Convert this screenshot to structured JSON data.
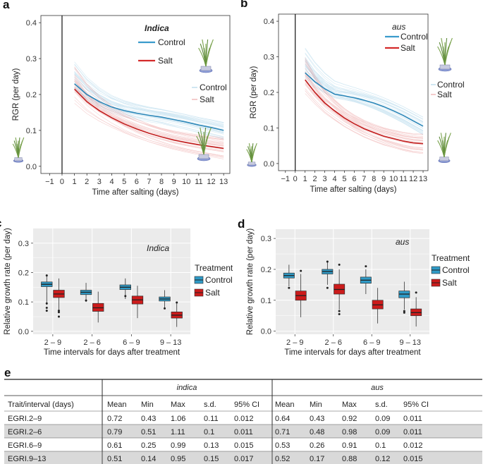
{
  "colors": {
    "control": "#3a9bcc",
    "salt": "#d42a2a",
    "control_box": "#2f9ac6",
    "salt_box": "#cc1b1b",
    "panel_bg": "#ebebeb",
    "grid": "#ffffff",
    "row_shade": "#d9d9d9"
  },
  "chart_data": [
    {
      "id": "a",
      "type": "line",
      "panel_letter": "a",
      "xlabel": "Time after salting (days)",
      "ylabel": "RGR (per day)",
      "x_ticks": [
        "−1",
        "0",
        "1",
        "2",
        "3",
        "4",
        "5",
        "6",
        "7",
        "8",
        "9",
        "10",
        "11",
        "12",
        "13"
      ],
      "xlim": [
        -1.7,
        13.5
      ],
      "y_ticks": [
        "0.0",
        "0.1",
        "0.2",
        "0.3",
        "0.4"
      ],
      "ylim": [
        -0.02,
        0.42
      ],
      "vline_x": 0,
      "legend_title": "Indica",
      "legend_entries": [
        "Control",
        "Salt"
      ],
      "legend_entries_small": [
        "Control",
        "Salt"
      ],
      "series": [
        {
          "name": "Control",
          "x": [
            1,
            2,
            3,
            4,
            5,
            6,
            7,
            8,
            9,
            10,
            11,
            12,
            13
          ],
          "values": [
            0.23,
            0.2,
            0.18,
            0.165,
            0.155,
            0.148,
            0.142,
            0.137,
            0.13,
            0.123,
            0.115,
            0.108,
            0.1
          ]
        },
        {
          "name": "Salt",
          "x": [
            1,
            2,
            3,
            4,
            5,
            6,
            7,
            8,
            9,
            10,
            11,
            12,
            13
          ],
          "values": [
            0.215,
            0.18,
            0.155,
            0.135,
            0.118,
            0.104,
            0.092,
            0.082,
            0.073,
            0.066,
            0.06,
            0.055,
            0.05
          ]
        }
      ]
    },
    {
      "id": "b",
      "type": "line",
      "panel_letter": "b",
      "xlabel": "Time after salting (days)",
      "ylabel": "RGR (per day)",
      "x_ticks": [
        "−1",
        "0",
        "1",
        "2",
        "3",
        "4",
        "5",
        "6",
        "7",
        "8",
        "9",
        "10",
        "11",
        "12",
        "13"
      ],
      "xlim": [
        -1.7,
        13.5
      ],
      "y_ticks": [
        "0.0",
        "0.1",
        "0.2",
        "0.3",
        "0.4"
      ],
      "ylim": [
        -0.02,
        0.42
      ],
      "vline_x": 0,
      "legend_title": "aus",
      "legend_entries": [
        "Control",
        "Salt"
      ],
      "legend_entries_small": [
        "Control",
        "Salt"
      ],
      "series": [
        {
          "name": "Control",
          "x": [
            1,
            2,
            3,
            4,
            5,
            6,
            7,
            8,
            9,
            10,
            11,
            12,
            13
          ],
          "values": [
            0.255,
            0.23,
            0.21,
            0.195,
            0.19,
            0.185,
            0.178,
            0.17,
            0.16,
            0.148,
            0.135,
            0.12,
            0.105
          ]
        },
        {
          "name": "Salt",
          "x": [
            1,
            2,
            3,
            4,
            5,
            6,
            7,
            8,
            9,
            10,
            11,
            12,
            13
          ],
          "values": [
            0.235,
            0.2,
            0.17,
            0.148,
            0.128,
            0.112,
            0.098,
            0.087,
            0.077,
            0.07,
            0.063,
            0.058,
            0.056
          ]
        }
      ]
    },
    {
      "id": "c",
      "type": "box",
      "panel_letter": "c",
      "xlabel": "Time intervals for days after treatment",
      "ylabel": "Relative growth rate (per day)",
      "categories": [
        "2 – 9",
        "2 – 6",
        "6 – 9",
        "9 – 13"
      ],
      "y_ticks": [
        "0.0",
        "0.1",
        "0.2",
        "0.3"
      ],
      "ylim": [
        -0.01,
        0.35
      ],
      "annotation": "Indica",
      "legend_title": "Treatment",
      "legend_entries": [
        "Control",
        "Salt"
      ],
      "series": [
        {
          "name": "Control",
          "boxes": [
            {
              "min": 0.09,
              "q1": 0.152,
              "median": 0.16,
              "q3": 0.168,
              "max": 0.19,
              "outliers": [
                0.07,
                0.08,
                0.095,
                0.19
              ]
            },
            {
              "min": 0.1,
              "q1": 0.125,
              "median": 0.133,
              "q3": 0.14,
              "max": 0.165,
              "outliers": [
                0.105
              ]
            },
            {
              "min": 0.11,
              "q1": 0.142,
              "median": 0.15,
              "q3": 0.158,
              "max": 0.18,
              "outliers": [
                0.12
              ]
            },
            {
              "min": 0.08,
              "q1": 0.103,
              "median": 0.11,
              "q3": 0.117,
              "max": 0.14,
              "outliers": [
                0.078
              ]
            }
          ]
        },
        {
          "name": "Salt",
          "boxes": [
            {
              "min": 0.07,
              "q1": 0.115,
              "median": 0.127,
              "q3": 0.14,
              "max": 0.18,
              "outliers": [
                0.05,
                0.065,
                0.07
              ]
            },
            {
              "min": 0.03,
              "q1": 0.068,
              "median": 0.08,
              "q3": 0.095,
              "max": 0.135,
              "outliers": []
            },
            {
              "min": 0.045,
              "q1": 0.093,
              "median": 0.107,
              "q3": 0.12,
              "max": 0.155,
              "outliers": []
            },
            {
              "min": 0.015,
              "q1": 0.045,
              "median": 0.055,
              "q3": 0.066,
              "max": 0.095,
              "outliers": [
                0.098
              ]
            }
          ]
        }
      ]
    },
    {
      "id": "d",
      "type": "box",
      "panel_letter": "d",
      "xlabel": "Time intervals for days after treatment",
      "ylabel": "Relative growth rate (per day)",
      "categories": [
        "2 – 9",
        "2 – 6",
        "6 – 9",
        "9 – 13"
      ],
      "y_ticks": [
        "0.0",
        "0.1",
        "0.2",
        "0.3"
      ],
      "ylim": [
        -0.01,
        0.33
      ],
      "annotation": "aus",
      "legend_title": "Treatment",
      "legend_entries": [
        "Control",
        "Salt"
      ],
      "series": [
        {
          "name": "Control",
          "boxes": [
            {
              "min": 0.145,
              "q1": 0.172,
              "median": 0.18,
              "q3": 0.188,
              "max": 0.215,
              "outliers": [
                0.14
              ]
            },
            {
              "min": 0.15,
              "q1": 0.185,
              "median": 0.193,
              "q3": 0.2,
              "max": 0.225,
              "outliers": [
                0.14,
                0.225
              ]
            },
            {
              "min": 0.12,
              "q1": 0.155,
              "median": 0.165,
              "q3": 0.175,
              "max": 0.2,
              "outliers": [
                0.21
              ]
            },
            {
              "min": 0.07,
              "q1": 0.108,
              "median": 0.12,
              "q3": 0.13,
              "max": 0.16,
              "outliers": [
                0.06,
                0.065
              ]
            }
          ]
        },
        {
          "name": "Salt",
          "boxes": [
            {
              "min": 0.045,
              "q1": 0.1,
              "median": 0.115,
              "q3": 0.13,
              "max": 0.185,
              "outliers": [
                0.195
              ]
            },
            {
              "min": 0.07,
              "q1": 0.12,
              "median": 0.135,
              "q3": 0.152,
              "max": 0.2,
              "outliers": [
                0.055,
                0.065,
                0.215
              ]
            },
            {
              "min": 0.025,
              "q1": 0.072,
              "median": 0.085,
              "q3": 0.1,
              "max": 0.14,
              "outliers": []
            },
            {
              "min": 0.015,
              "q1": 0.05,
              "median": 0.06,
              "q3": 0.072,
              "max": 0.11,
              "outliers": [
                0.125
              ]
            }
          ]
        }
      ]
    }
  ],
  "table": {
    "panel_letter": "e",
    "group_headers": [
      "indica",
      "aus"
    ],
    "col_first": "Trait/interval (days)",
    "sub_headers": [
      "Mean",
      "Min",
      "Max",
      "s.d.",
      "95% CI"
    ],
    "rows": [
      {
        "trait": "EGRI.2–9",
        "indica": [
          "0.72",
          "0.43",
          "1.06",
          "0.11",
          "0.012"
        ],
        "aus": [
          "0.64",
          "0.43",
          "0.92",
          "0.09",
          "0.011"
        ]
      },
      {
        "trait": "EGRI.2–6",
        "indica": [
          "0.79",
          "0.51",
          "1.11",
          "0.1",
          "0.011"
        ],
        "aus": [
          "0.71",
          "0.48",
          "0.98",
          "0.09",
          "0.011"
        ]
      },
      {
        "trait": "EGRI.6–9",
        "indica": [
          "0.61",
          "0.25",
          "0.99",
          "0.13",
          "0.015"
        ],
        "aus": [
          "0.53",
          "0.26",
          "0.91",
          "0.1",
          "0.012"
        ]
      },
      {
        "trait": "EGRI.9–13",
        "indica": [
          "0.51",
          "0.14",
          "0.95",
          "0.15",
          "0.017"
        ],
        "aus": [
          "0.52",
          "0.17",
          "0.88",
          "0.12",
          "0.015"
        ]
      }
    ]
  }
}
